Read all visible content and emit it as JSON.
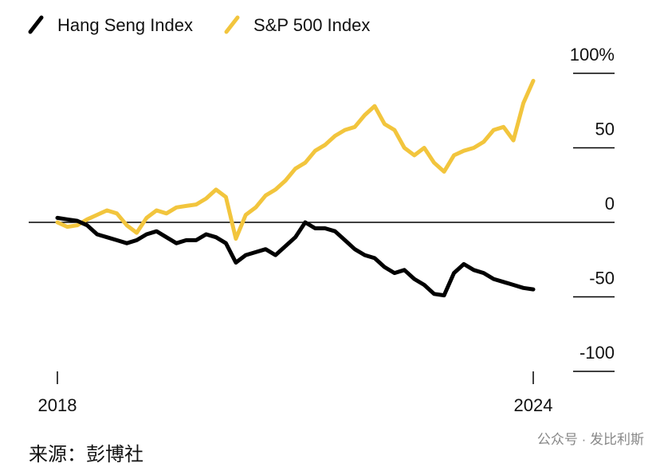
{
  "chart_data": {
    "type": "line",
    "xlim": [
      2018,
      2024
    ],
    "xticks": [
      2018,
      2024
    ],
    "ylim": [
      -100,
      100
    ],
    "yticks": [
      {
        "value": 100,
        "label": "100%"
      },
      50,
      0,
      -50,
      -100
    ],
    "series": [
      {
        "name": "Hang Seng Index",
        "color": "#000000",
        "values": [
          3,
          2,
          1,
          -2,
          -8,
          -10,
          -12,
          -14,
          -12,
          -8,
          -6,
          -10,
          -14,
          -12,
          -12,
          -8,
          -10,
          -14,
          -27,
          -22,
          -20,
          -18,
          -22,
          -16,
          -10,
          0,
          -4,
          -4,
          -6,
          -12,
          -18,
          -22,
          -24,
          -30,
          -34,
          -32,
          -38,
          -42,
          -48,
          -49,
          -34,
          -28,
          -32,
          -34,
          -38,
          -40,
          -42,
          -44,
          -45
        ]
      },
      {
        "name": "S&P 500 Index",
        "color": "#f2c53d",
        "values": [
          0,
          -3,
          -2,
          2,
          5,
          8,
          6,
          -2,
          -7,
          3,
          8,
          6,
          10,
          11,
          12,
          16,
          22,
          17,
          -11,
          5,
          10,
          18,
          22,
          28,
          36,
          40,
          48,
          52,
          58,
          62,
          64,
          72,
          78,
          66,
          62,
          50,
          45,
          50,
          40,
          34,
          45,
          48,
          50,
          54,
          62,
          64,
          55,
          80,
          95
        ]
      }
    ],
    "source": "来源：彭博社",
    "watermark": "公众号 · 发比利斯"
  }
}
